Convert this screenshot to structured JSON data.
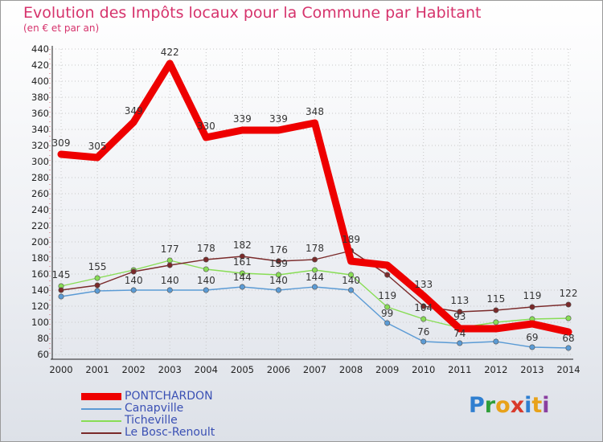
{
  "header": {
    "title": "Evolution des Impôts locaux pour la Commune par Habitant",
    "subtitle": "(en € et par an)"
  },
  "logo": {
    "text": "Proxiti",
    "colors": [
      "#2f7fd0",
      "#2f9e3a",
      "#e8a21a",
      "#d8392b",
      "#2f7fd0",
      "#e8a21a",
      "#8a3fa0"
    ]
  },
  "chart_data": {
    "type": "line",
    "x": [
      "2000",
      "2001",
      "2002",
      "2003",
      "2004",
      "2005",
      "2006",
      "2007",
      "2008",
      "2009",
      "2010",
      "2011",
      "2012",
      "2013",
      "2014"
    ],
    "yticks": [
      60,
      80,
      100,
      120,
      140,
      160,
      180,
      200,
      220,
      240,
      260,
      280,
      300,
      320,
      340,
      360,
      380,
      400,
      420,
      440
    ],
    "ylim": [
      60,
      440
    ],
    "grid": true,
    "legend_position": "bottom-left",
    "series": [
      {
        "name": "PONTCHARDON",
        "color": "#ee0000",
        "values": [
          309,
          305,
          349,
          422,
          330,
          339,
          339,
          348,
          176,
          171,
          133,
          92,
          92,
          98,
          88
        ],
        "labels": [
          "309",
          "305",
          "349",
          "422",
          "330",
          "339",
          "339",
          "348",
          "",
          "",
          "133",
          "",
          "",
          "",
          ""
        ]
      },
      {
        "name": "Canapville",
        "color": "#5b9bd5",
        "values": [
          132,
          139,
          140,
          140,
          140,
          144,
          140,
          144,
          140,
          99,
          76,
          74,
          76,
          69,
          68
        ],
        "labels": [
          "",
          "",
          "140",
          "140",
          "140",
          "144",
          "140",
          "144",
          "140",
          "99",
          "76",
          "74",
          "",
          "69",
          "68"
        ]
      },
      {
        "name": "Ticheville",
        "color": "#88dd55",
        "values": [
          145,
          155,
          165,
          177,
          166,
          161,
          159,
          165,
          159,
          119,
          104,
          93,
          100,
          104,
          105
        ],
        "labels": [
          "145",
          "155",
          "",
          "177",
          "",
          "161",
          "159",
          "",
          "",
          "119",
          "104",
          "93",
          "",
          "",
          ""
        ]
      },
      {
        "name": "Le Bosc-Renoult",
        "color": "#7a2a2a",
        "values": [
          140,
          146,
          163,
          171,
          178,
          182,
          176,
          178,
          189,
          159,
          120,
          113,
          115,
          119,
          122
        ],
        "labels": [
          "",
          "",
          "",
          "",
          "178",
          "182",
          "176",
          "178",
          "189",
          "",
          "",
          "113",
          "115",
          "119",
          "122"
        ]
      }
    ]
  }
}
